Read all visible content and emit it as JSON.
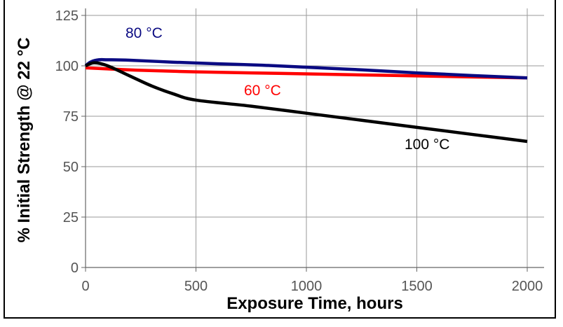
{
  "chart_data": {
    "type": "line",
    "title": "",
    "xlabel": "Exposure Time, hours",
    "ylabel": "% Initial Strength @ 22 °C",
    "xlim": [
      0,
      2000
    ],
    "ylim": [
      0,
      125
    ],
    "x_ticks": [
      0,
      500,
      1000,
      1500,
      2000
    ],
    "y_ticks": [
      0,
      25,
      50,
      75,
      100,
      125
    ],
    "x_tick_labels": [
      "0",
      "500",
      "1000",
      "1500",
      "2000"
    ],
    "y_tick_labels": [
      "0",
      "25",
      "50",
      "75",
      "100",
      "125"
    ],
    "grid": true,
    "series": [
      {
        "name": "60 °C",
        "color": "#ff0000",
        "x": [
          0,
          100,
          250,
          500,
          750,
          1000,
          1250,
          1500,
          1750,
          2000
        ],
        "y": [
          99,
          98.5,
          97.8,
          97,
          96.5,
          96,
          95.5,
          95,
          94.5,
          94
        ]
      },
      {
        "name": "80 °C",
        "color": "#0a0a82",
        "x": [
          0,
          25,
          60,
          100,
          200,
          400,
          600,
          800,
          1000,
          1250,
          1500,
          1750,
          2000
        ],
        "y": [
          100,
          102,
          103,
          103,
          102.8,
          101.8,
          101,
          100.3,
          99.3,
          98,
          96.5,
          95.2,
          94
        ]
      },
      {
        "name": "100 °C",
        "color": "#000000",
        "x": [
          0,
          40,
          100,
          200,
          300,
          400,
          500,
          750,
          1000,
          1250,
          1500,
          1750,
          2000
        ],
        "y": [
          100,
          101.5,
          100,
          95,
          90,
          86,
          83,
          80,
          76.5,
          73,
          69.5,
          66,
          62.5
        ]
      }
    ],
    "annotations": [
      "80 °C",
      "60 °C",
      "100 °C"
    ]
  }
}
